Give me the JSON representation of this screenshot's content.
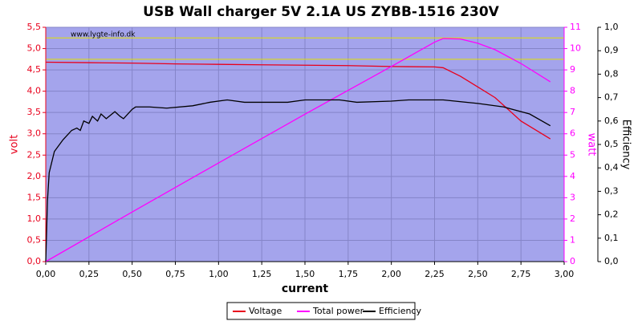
{
  "chart_data": {
    "type": "line",
    "title": "USB Wall charger 5V 2.1A US ZYBB-1516 230V",
    "watermark": "www.lygte-info.dk",
    "xlabel": "current",
    "ylabel": "volt",
    "y2label": "watt",
    "y3label": "Efficiency",
    "xlim": [
      0,
      3
    ],
    "ylim": [
      0,
      5.5
    ],
    "y2lim": [
      0,
      11
    ],
    "y3lim": [
      0,
      1
    ],
    "xticks": [
      {
        "value": 0,
        "label": "0,00"
      },
      {
        "value": 0.25,
        "label": "0,25"
      },
      {
        "value": 0.5,
        "label": "0,50"
      },
      {
        "value": 0.75,
        "label": "0,75"
      },
      {
        "value": 1,
        "label": "1,00"
      },
      {
        "value": 1.25,
        "label": "1,25"
      },
      {
        "value": 1.5,
        "label": "1,50"
      },
      {
        "value": 1.75,
        "label": "1,75"
      },
      {
        "value": 2,
        "label": "2,00"
      },
      {
        "value": 2.25,
        "label": "2,25"
      },
      {
        "value": 2.5,
        "label": "2,50"
      },
      {
        "value": 2.75,
        "label": "2,75"
      },
      {
        "value": 3,
        "label": "3,00"
      }
    ],
    "yticks": [
      {
        "value": 0,
        "label": "0,0"
      },
      {
        "value": 0.5,
        "label": "0,5"
      },
      {
        "value": 1,
        "label": "1,0"
      },
      {
        "value": 1.5,
        "label": "1,5"
      },
      {
        "value": 2,
        "label": "2,0"
      },
      {
        "value": 2.5,
        "label": "2,5"
      },
      {
        "value": 3,
        "label": "3,0"
      },
      {
        "value": 3.5,
        "label": "3,5"
      },
      {
        "value": 4,
        "label": "4,0"
      },
      {
        "value": 4.5,
        "label": "4,5"
      },
      {
        "value": 5,
        "label": "5,0"
      },
      {
        "value": 5.5,
        "label": "5,5"
      }
    ],
    "y2ticks": [
      0,
      1,
      2,
      3,
      4,
      5,
      6,
      7,
      8,
      9,
      10,
      11
    ],
    "y3ticks": [
      {
        "value": 0,
        "label": "0,0"
      },
      {
        "value": 0.1,
        "label": "0,1"
      },
      {
        "value": 0.2,
        "label": "0,2"
      },
      {
        "value": 0.3,
        "label": "0,3"
      },
      {
        "value": 0.4,
        "label": "0,4"
      },
      {
        "value": 0.5,
        "label": "0,5"
      },
      {
        "value": 0.6,
        "label": "0,6"
      },
      {
        "value": 0.7,
        "label": "0,7"
      },
      {
        "value": 0.8,
        "label": "0,8"
      },
      {
        "value": 0.9,
        "label": "0,9"
      },
      {
        "value": 1,
        "label": "1,0"
      }
    ],
    "grid": true,
    "reference_lines": [
      5.25,
      4.75
    ],
    "reference_color": "#e0e000",
    "series": [
      {
        "name": "Voltage",
        "color": "#e8001c",
        "axis": "y",
        "x": [
          0,
          0.25,
          0.5,
          0.75,
          1,
          1.25,
          1.5,
          1.75,
          2,
          2.25,
          2.3,
          2.4,
          2.5,
          2.6,
          2.75,
          2.92
        ],
        "values": [
          4.68,
          4.67,
          4.66,
          4.64,
          4.63,
          4.62,
          4.61,
          4.6,
          4.58,
          4.57,
          4.55,
          4.35,
          4.1,
          3.85,
          3.3,
          2.88
        ]
      },
      {
        "name": "Total power",
        "color": "#ff00ff",
        "axis": "y2",
        "x": [
          0,
          0.5,
          1,
          1.5,
          2,
          2.25,
          2.3,
          2.4,
          2.5,
          2.6,
          2.75,
          2.92
        ],
        "values": [
          0,
          2.33,
          4.63,
          6.92,
          9.16,
          10.3,
          10.47,
          10.45,
          10.25,
          9.95,
          9.3,
          8.44
        ]
      },
      {
        "name": "Efficiency",
        "color": "#000000",
        "axis": "y3",
        "x": [
          0,
          0.01,
          0.02,
          0.05,
          0.1,
          0.15,
          0.18,
          0.2,
          0.22,
          0.25,
          0.27,
          0.3,
          0.32,
          0.35,
          0.4,
          0.43,
          0.45,
          0.5,
          0.52,
          0.6,
          0.7,
          0.85,
          0.95,
          1.05,
          1.15,
          1.25,
          1.4,
          1.5,
          1.7,
          1.8,
          2,
          2.1,
          2.3,
          2.5,
          2.65,
          2.8,
          2.92
        ],
        "values": [
          0,
          0.26,
          0.38,
          0.47,
          0.52,
          0.56,
          0.57,
          0.56,
          0.6,
          0.59,
          0.62,
          0.6,
          0.63,
          0.61,
          0.64,
          0.62,
          0.61,
          0.65,
          0.66,
          0.66,
          0.655,
          0.665,
          0.68,
          0.69,
          0.68,
          0.68,
          0.68,
          0.69,
          0.69,
          0.68,
          0.685,
          0.69,
          0.69,
          0.675,
          0.66,
          0.63,
          0.58
        ]
      }
    ]
  }
}
